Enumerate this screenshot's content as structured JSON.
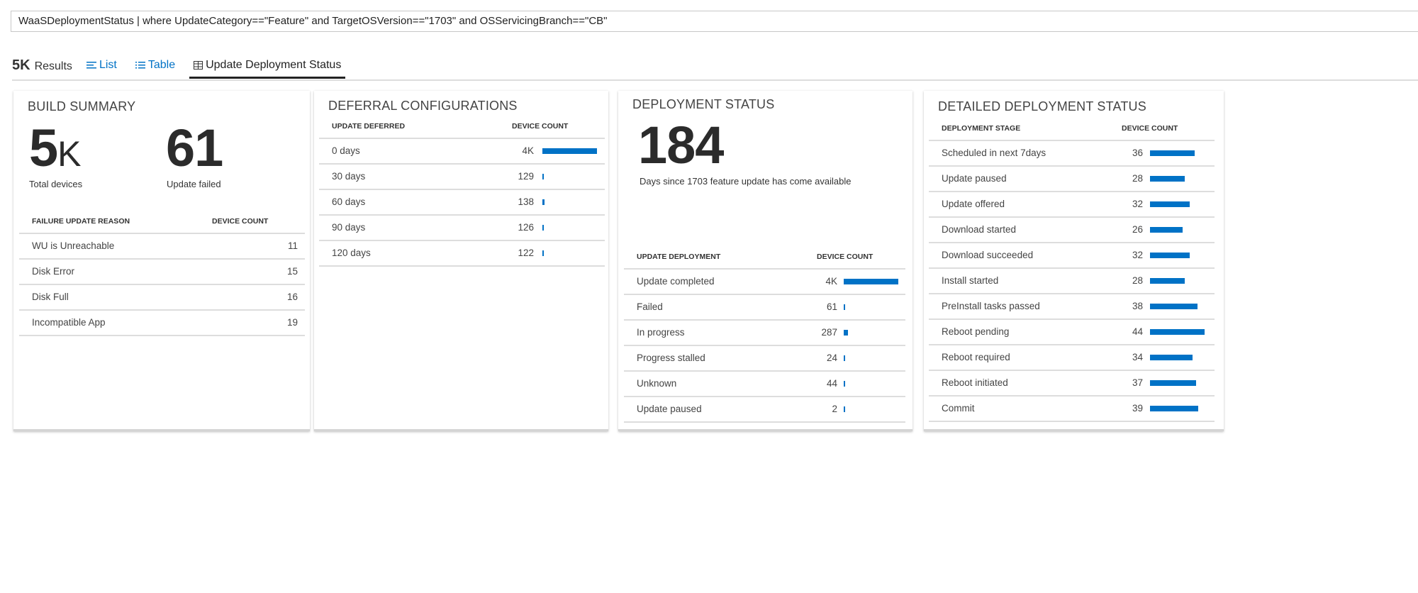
{
  "query": "WaaSDeploymentStatus | where UpdateCategory==\"Feature\" and TargetOSVersion==\"1703\" and OSServicingBranch==\"CB\"",
  "results": {
    "count": "5K",
    "label": "Results"
  },
  "tabs": [
    {
      "label": "List",
      "icon": "list-icon"
    },
    {
      "label": "Table",
      "icon": "table-icon"
    },
    {
      "label": "Update Deployment Status",
      "icon": "grid-icon",
      "active": true
    }
  ],
  "accent": "#0072c6",
  "build_summary": {
    "title": "BUILD SUMMARY",
    "total_value": "5",
    "total_unit": "K",
    "total_label": "Total devices",
    "failed_value": "61",
    "failed_label": "Update failed",
    "headers": [
      "FAILURE UPDATE REASON",
      "DEVICE COUNT"
    ],
    "rows": [
      {
        "label": "WU is Unreachable",
        "count": "11"
      },
      {
        "label": "Disk Error",
        "count": "15"
      },
      {
        "label": "Disk Full",
        "count": "16"
      },
      {
        "label": "Incompatible App",
        "count": "19"
      }
    ]
  },
  "deferral": {
    "title": "DEFERRAL CONFIGURATIONS",
    "headers": [
      "UPDATE DEFERRED",
      "DEVICE COUNT"
    ],
    "rows": [
      {
        "label": "0 days",
        "count": "4K"
      },
      {
        "label": "30 days",
        "count": "129"
      },
      {
        "label": "60 days",
        "count": "138"
      },
      {
        "label": "90 days",
        "count": "126"
      },
      {
        "label": "120 days",
        "count": "122"
      }
    ]
  },
  "deployment_status": {
    "title": "DEPLOYMENT STATUS",
    "days_value": "184",
    "days_label": "Days since 1703 feature update has come available",
    "headers": [
      "UPDATE DEPLOYMENT",
      "DEVICE COUNT"
    ],
    "rows": [
      {
        "label": "Update completed",
        "count": "4K"
      },
      {
        "label": "Failed",
        "count": "61"
      },
      {
        "label": "In progress",
        "count": "287"
      },
      {
        "label": "Progress stalled",
        "count": "24"
      },
      {
        "label": "Unknown",
        "count": "44"
      },
      {
        "label": "Update paused",
        "count": "2"
      }
    ]
  },
  "detailed": {
    "title": "DETAILED DEPLOYMENT STATUS",
    "headers": [
      "DEPLOYMENT STAGE",
      "DEVICE COUNT"
    ],
    "rows": [
      {
        "label": "Scheduled in next 7days",
        "count": "36"
      },
      {
        "label": "Update paused",
        "count": "28"
      },
      {
        "label": "Update offered",
        "count": "32"
      },
      {
        "label": "Download started",
        "count": "26"
      },
      {
        "label": "Download succeeded",
        "count": "32"
      },
      {
        "label": "Install started",
        "count": "28"
      },
      {
        "label": "PreInstall tasks passed",
        "count": "38"
      },
      {
        "label": "Reboot pending",
        "count": "44"
      },
      {
        "label": "Reboot required",
        "count": "34"
      },
      {
        "label": "Reboot initiated",
        "count": "37"
      },
      {
        "label": "Commit",
        "count": "39"
      }
    ]
  }
}
